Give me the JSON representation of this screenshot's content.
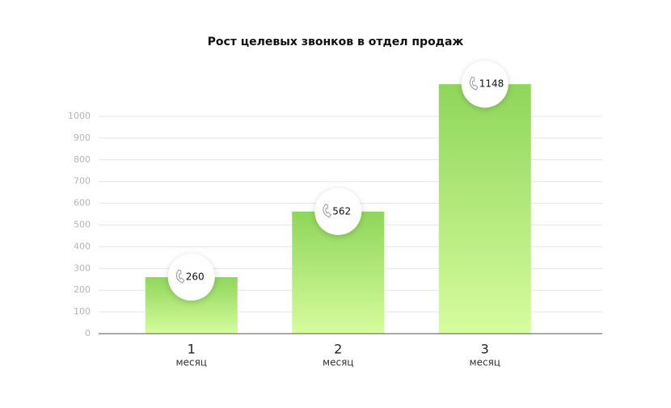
{
  "chart_data": {
    "type": "bar",
    "title": "Рост целевых звонков в отдел продаж",
    "categories": [
      "1",
      "2",
      "3"
    ],
    "category_unit": "месяц",
    "values": [
      260,
      562,
      1148
    ],
    "color": "#93d95c",
    "ylim": [
      0,
      1150
    ],
    "yticks": [
      0,
      100,
      200,
      300,
      400,
      500,
      600,
      700,
      800,
      900,
      1000
    ],
    "grid": true
  }
}
